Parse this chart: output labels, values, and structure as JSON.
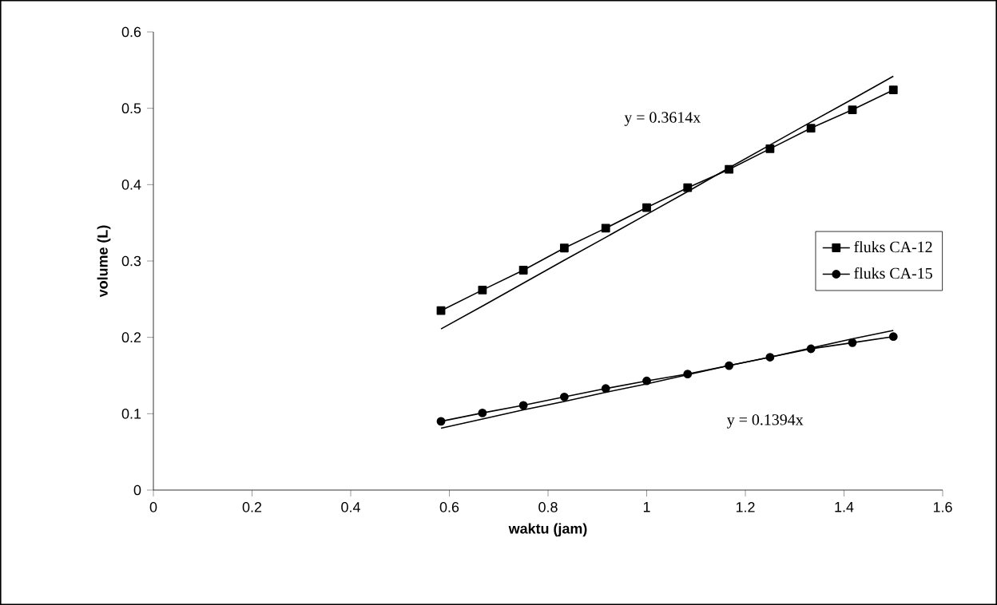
{
  "chart_data": {
    "type": "line",
    "xlabel": "waktu (jam)",
    "ylabel": "volume (L)",
    "xlim": [
      0,
      1.6
    ],
    "xticks": [
      0,
      0.2,
      0.4,
      0.6,
      0.8,
      1,
      1.2,
      1.4,
      1.6
    ],
    "ylim": [
      0,
      0.6
    ],
    "yticks": [
      0,
      0.1,
      0.2,
      0.3,
      0.4,
      0.5,
      0.6
    ],
    "x": [
      0.583,
      0.667,
      0.75,
      0.833,
      0.917,
      1.0,
      1.083,
      1.167,
      1.25,
      1.333,
      1.417,
      1.5
    ],
    "series": [
      {
        "name": "fluks CA-12",
        "color": "#000000",
        "marker": "square",
        "values": [
          0.235,
          0.262,
          0.288,
          0.317,
          0.343,
          0.37,
          0.396,
          0.42,
          0.447,
          0.474,
          0.498,
          0.524
        ]
      },
      {
        "name": "fluks CA-15",
        "color": "#000000",
        "marker": "circle",
        "values": [
          0.09,
          0.101,
          0.111,
          0.122,
          0.133,
          0.143,
          0.152,
          0.163,
          0.174,
          0.185,
          0.193,
          0.201
        ]
      },
      {
        "type": "line",
        "color": "#000000",
        "marker": "none",
        "values": [
          0.211,
          0.241,
          0.271,
          0.301,
          0.331,
          0.361,
          0.391,
          0.422,
          0.452,
          0.482,
          0.512,
          0.542
        ]
      },
      {
        "type": "line",
        "color": "#000000",
        "marker": "none",
        "values": [
          0.081,
          0.093,
          0.105,
          0.116,
          0.128,
          0.139,
          0.151,
          0.163,
          0.174,
          0.186,
          0.198,
          0.209
        ]
      }
    ],
    "annotations": [
      "y = 0.3614x",
      "y = 0.1394x"
    ],
    "legend": "right",
    "grid": false
  }
}
